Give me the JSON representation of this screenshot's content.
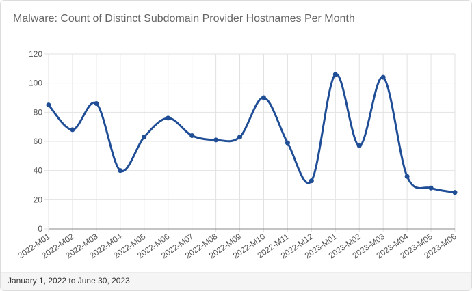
{
  "card": {
    "title": "Malware: Count of Distinct Subdomain Provider Hostnames Per Month",
    "footer": "January 1, 2022 to June 30, 2023"
  },
  "colors": {
    "line": "#1f4e96",
    "grid": "#e2e2e2",
    "axis": "#888888"
  },
  "chart_data": {
    "type": "line",
    "title": "Malware: Count of Distinct Subdomain Provider Hostnames Per Month",
    "xlabel": "",
    "ylabel": "",
    "ylim": [
      0,
      120
    ],
    "yticks": [
      0,
      20,
      40,
      60,
      80,
      100,
      120
    ],
    "grid": true,
    "categories": [
      "2022-M01",
      "2022-M02",
      "2022-M03",
      "2022-M04",
      "2022-M05",
      "2022-M06",
      "2022-M07",
      "2022-M08",
      "2022-M09",
      "2022-M10",
      "2022-M11",
      "2022-M12",
      "2023-M01",
      "2023-M02",
      "2023-M03",
      "2023-M04",
      "2023-M05",
      "2023-M06"
    ],
    "series": [
      {
        "name": "Distinct Subdomain Provider Hostnames",
        "values": [
          85,
          68,
          86,
          40,
          63,
          76,
          64,
          61,
          63,
          90,
          59,
          33,
          106,
          57,
          104,
          36,
          28,
          25
        ]
      }
    ]
  }
}
